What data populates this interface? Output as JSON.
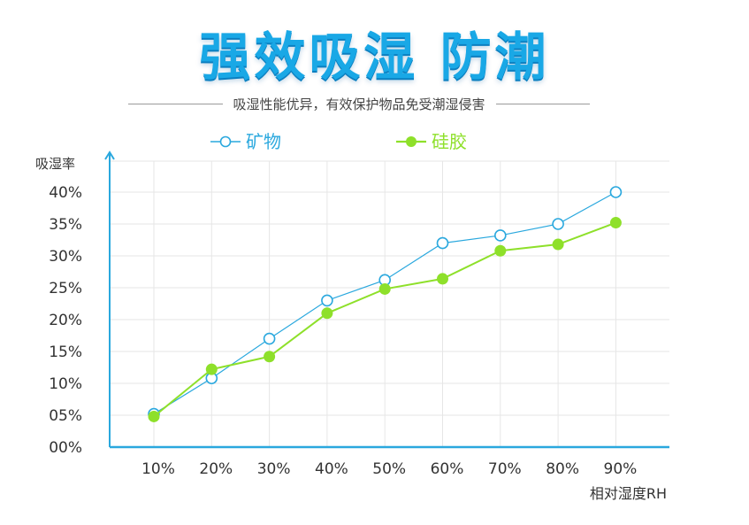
{
  "header": {
    "title": "强效吸湿 防潮",
    "subtitle": "吸湿性能优异，有效保护物品免受潮湿侵害"
  },
  "colors": {
    "title": "#19a8e6",
    "mineral": "#2aa8de",
    "silica": "#8ee02a",
    "axis": "#2aa8de",
    "grid": "#e6e6e6"
  },
  "chart_data": {
    "type": "line",
    "ylabel": "吸湿率",
    "xlabel": "相对湿度RH",
    "categories": [
      "10%",
      "20%",
      "30%",
      "40%",
      "50%",
      "60%",
      "70%",
      "80%",
      "90%"
    ],
    "ylim": [
      0,
      40
    ],
    "yticks": [
      0,
      5,
      10,
      15,
      20,
      25,
      30,
      35,
      40
    ],
    "ytick_labels": [
      "00%",
      "05%",
      "10%",
      "15%",
      "20%",
      "25%",
      "30%",
      "35%",
      "40%"
    ],
    "grid": true,
    "legend_position": "top",
    "series": [
      {
        "name": "矿物",
        "marker": "hollow-circle",
        "values": [
          5.2,
          10.8,
          17,
          23,
          26.2,
          32,
          33.2,
          35,
          40
        ]
      },
      {
        "name": "硅胶",
        "marker": "filled-circle",
        "values": [
          4.8,
          12.2,
          14.2,
          21,
          24.8,
          26.4,
          30.8,
          31.8,
          35.2
        ]
      }
    ]
  }
}
